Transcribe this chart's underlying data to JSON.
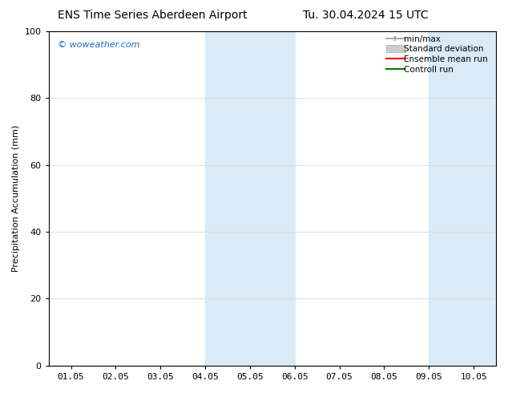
{
  "title_left": "ENS Time Series Aberdeen Airport",
  "title_right": "Tu. 30.04.2024 15 UTC",
  "ylabel": "Precipitation Accumulation (mm)",
  "ylim": [
    0,
    100
  ],
  "yticks": [
    0,
    20,
    40,
    60,
    80,
    100
  ],
  "xtick_labels": [
    "01.05",
    "02.05",
    "03.05",
    "04.05",
    "05.05",
    "06.05",
    "07.05",
    "08.05",
    "09.05",
    "10.05"
  ],
  "xtick_positions": [
    0,
    1,
    2,
    3,
    4,
    5,
    6,
    7,
    8,
    9
  ],
  "xlim": [
    -0.5,
    9.5
  ],
  "shaded_bands": [
    {
      "xstart": 3.0,
      "xend": 3.5
    },
    {
      "xstart": 3.5,
      "xend": 5.0
    },
    {
      "xstart": 8.0,
      "xend": 8.5
    },
    {
      "xstart": 8.5,
      "xend": 9.5
    }
  ],
  "shade_color": "#daeaf6",
  "watermark": "© woweather.com",
  "watermark_color": "#1a6abf",
  "legend_items": [
    {
      "label": "min/max",
      "color": "#aaaaaa",
      "style": "minmax"
    },
    {
      "label": "Standard deviation",
      "color": "#cccccc",
      "style": "stddev"
    },
    {
      "label": "Ensemble mean run",
      "color": "#ff0000",
      "style": "line"
    },
    {
      "label": "Controll run",
      "color": "#008000",
      "style": "line"
    }
  ],
  "bg_color": "#ffffff",
  "grid_color": "#dddddd",
  "title_fontsize": 10,
  "axis_fontsize": 8,
  "tick_fontsize": 8
}
